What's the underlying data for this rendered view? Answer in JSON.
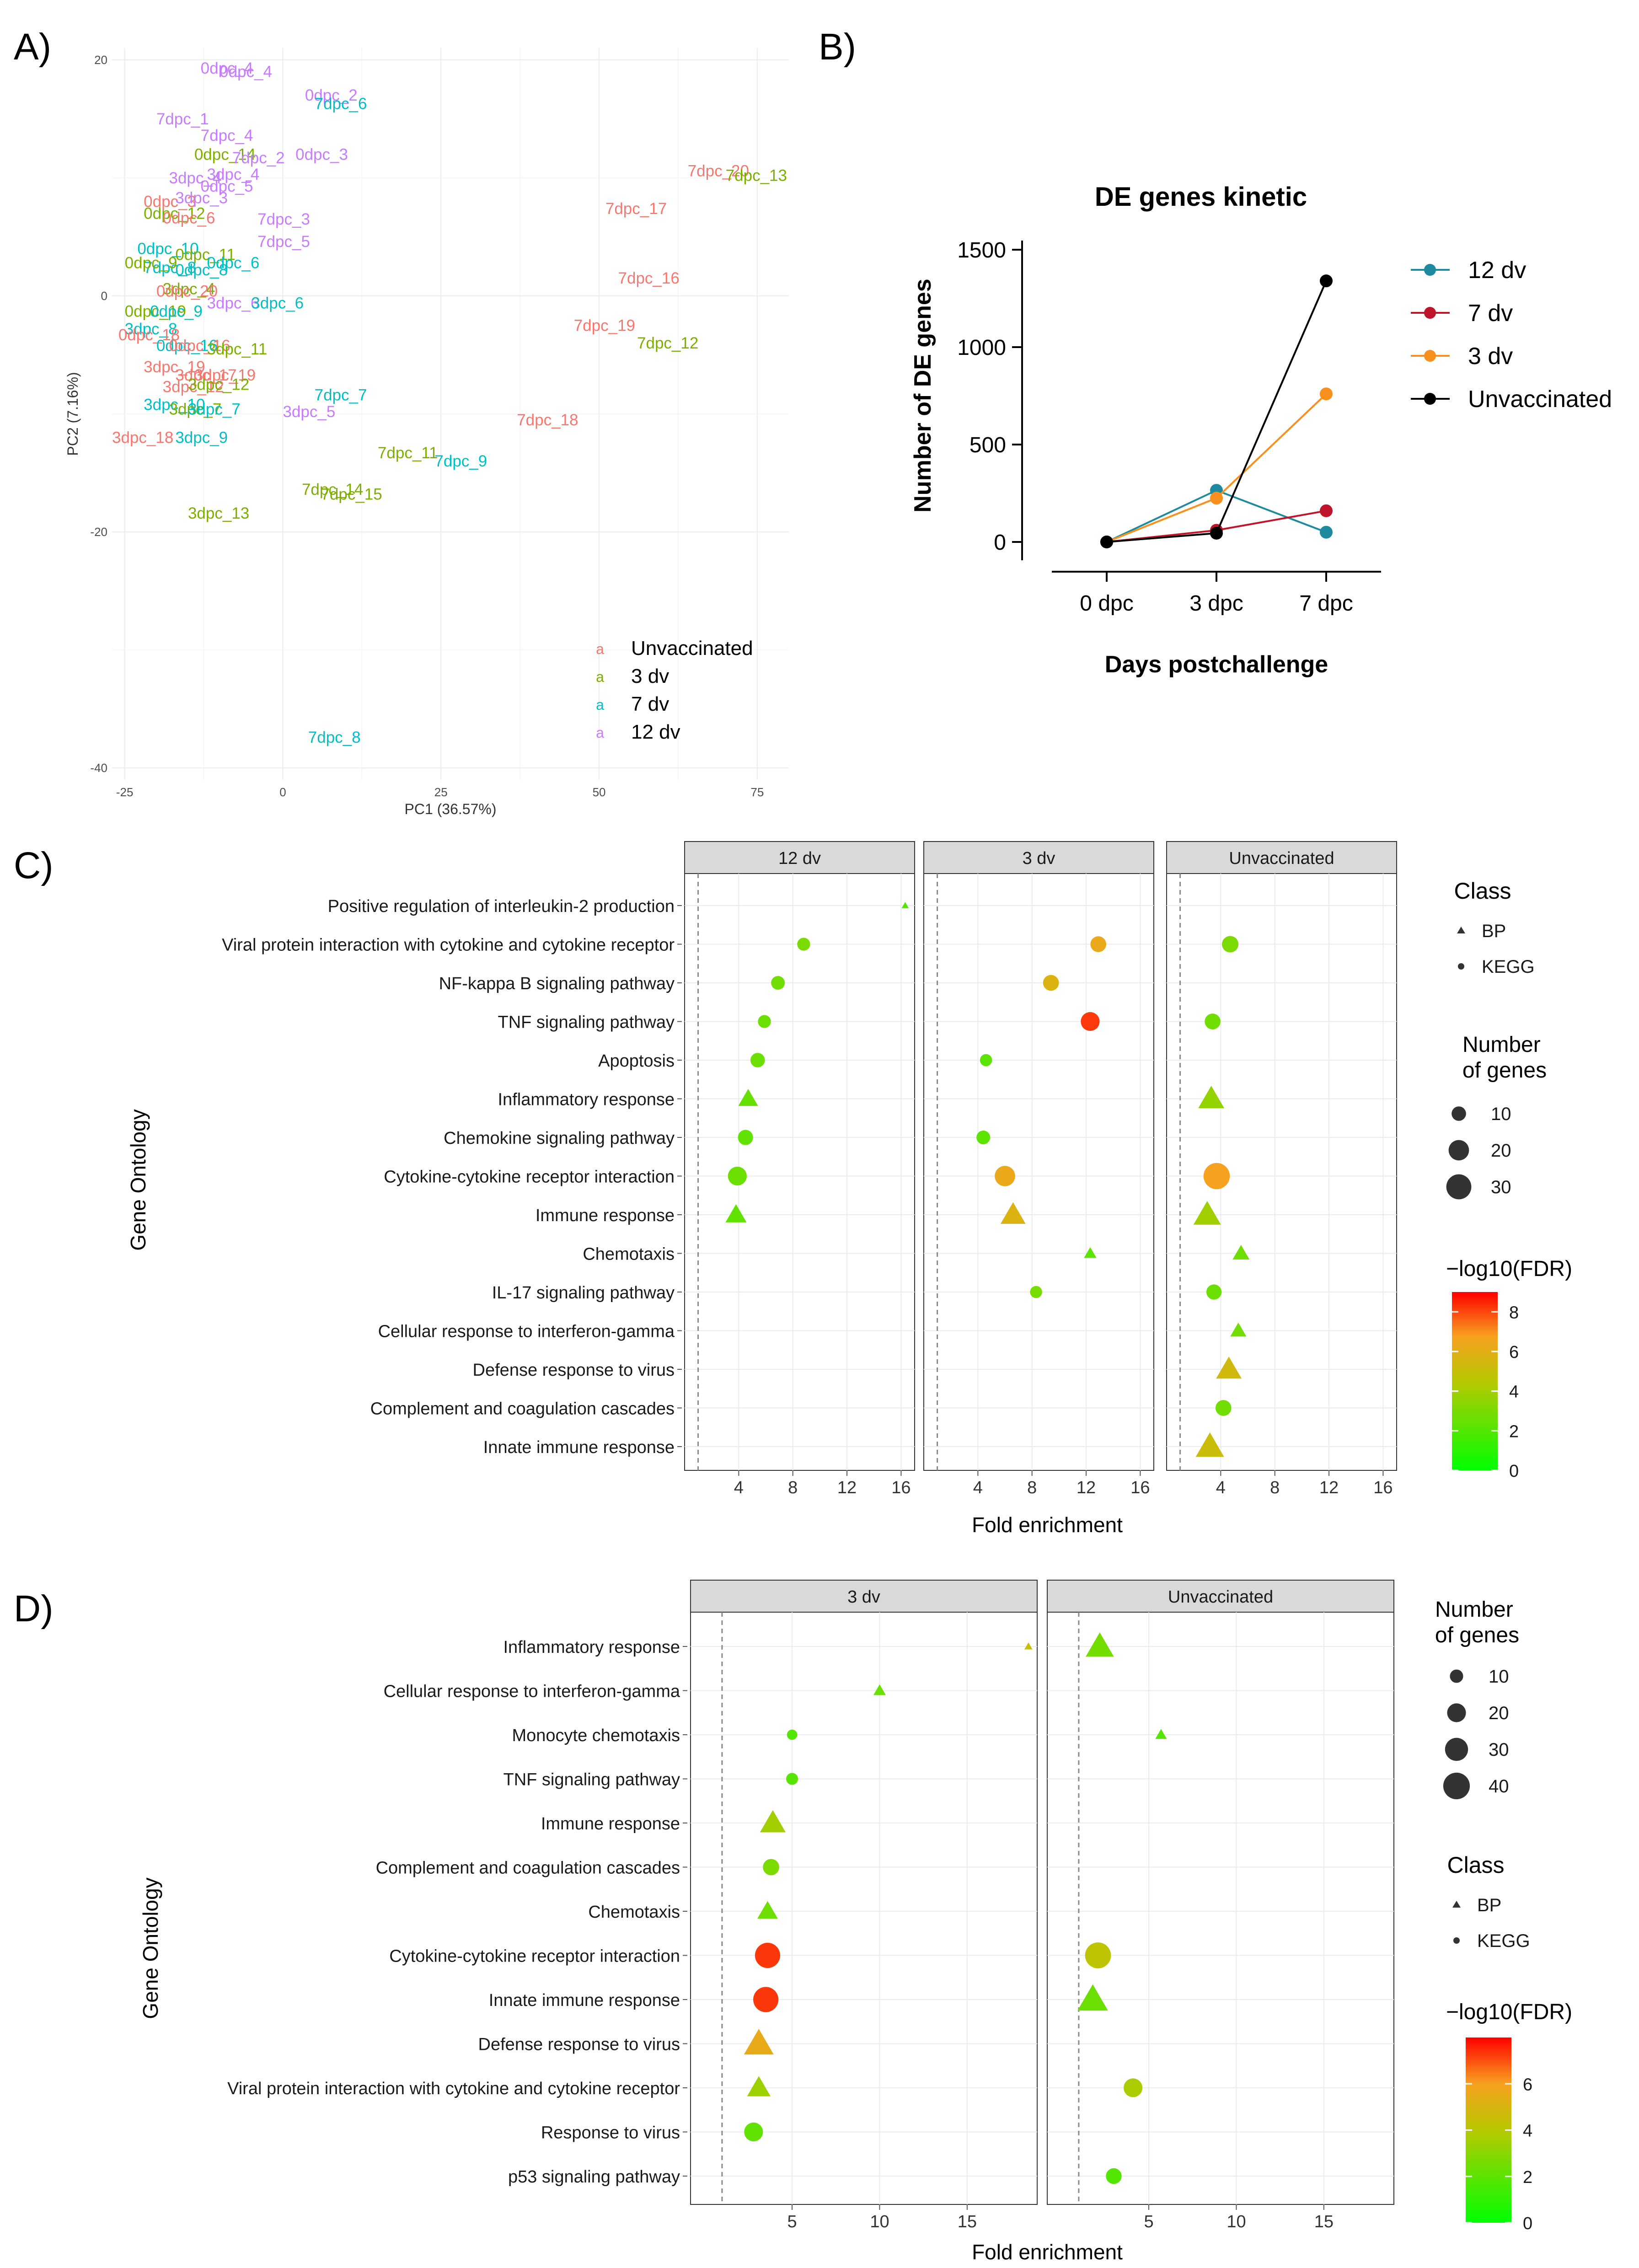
{
  "panel_labels": {
    "a": "A)",
    "b": "B)",
    "c": "C)",
    "d": "D)"
  },
  "colors": {
    "unvaccinated": "#F8766D",
    "dv3": "#7CAE00",
    "dv7": "#00BFC4",
    "dv12": "#C77CFF",
    "line_12dv": "#1F8A9E",
    "line_7dv": "#C0142B",
    "line_3dv": "#F7901E",
    "line_unvacc": "#000000"
  },
  "chart_data": [
    {
      "id": "A",
      "type": "scatter",
      "title": "",
      "xlabel": "PC1 (36.57%)",
      "ylabel": "PC2 (7.16%)",
      "xlim": [
        -27,
        80
      ],
      "ylim": [
        -41,
        21
      ],
      "xticks": [
        -25,
        0,
        25,
        50,
        75
      ],
      "yticks": [
        20,
        0,
        -20,
        -40
      ],
      "legend": [
        {
          "key": "u",
          "glyph": "a",
          "label": "Unvaccinated"
        },
        {
          "key": "d3",
          "glyph": "a",
          "label": "3 dv"
        },
        {
          "key": "d7",
          "glyph": "a",
          "label": "7 dv"
        },
        {
          "key": "d12",
          "glyph": "a",
          "label": "12 dv"
        }
      ],
      "points": [
        {
          "label": "0dpc_4",
          "x": -13,
          "y": 19.3,
          "g": "d12"
        },
        {
          "label": "0dpc_4",
          "x": -10,
          "y": 19,
          "g": "d12"
        },
        {
          "label": "0dpc_2",
          "x": 3.5,
          "y": 17,
          "g": "d12"
        },
        {
          "label": "7dpc_6",
          "x": 5,
          "y": 16.3,
          "g": "d7"
        },
        {
          "label": "7dpc_1",
          "x": -20,
          "y": 15,
          "g": "d12"
        },
        {
          "label": "7dpc_4",
          "x": -13,
          "y": 13.6,
          "g": "d12"
        },
        {
          "label": "0dpc_14",
          "x": -14,
          "y": 12,
          "g": "d3"
        },
        {
          "label": "7dpc_2",
          "x": -8,
          "y": 11.7,
          "g": "d12"
        },
        {
          "label": "0dpc_3",
          "x": 2,
          "y": 12,
          "g": "d12"
        },
        {
          "label": "3dpc_4",
          "x": -18,
          "y": 10,
          "g": "d12"
        },
        {
          "label": "3dpc_4",
          "x": -12,
          "y": 10.3,
          "g": "d12"
        },
        {
          "label": "0dpc_5",
          "x": -13,
          "y": 9.3,
          "g": "d12"
        },
        {
          "label": "0dpc_3",
          "x": -22,
          "y": 8,
          "g": "u"
        },
        {
          "label": "3dpc_3",
          "x": -17,
          "y": 8.3,
          "g": "d12"
        },
        {
          "label": "0dpc_12",
          "x": -22,
          "y": 7,
          "g": "d3"
        },
        {
          "label": "0dpc_6",
          "x": -19,
          "y": 6.6,
          "g": "u"
        },
        {
          "label": "7dpc_3",
          "x": -4,
          "y": 6.5,
          "g": "d12"
        },
        {
          "label": "7dpc_5",
          "x": -4,
          "y": 4.6,
          "g": "d12"
        },
        {
          "label": "0dpc_10",
          "x": -23,
          "y": 4,
          "g": "d7"
        },
        {
          "label": "0dpc_11",
          "x": -17,
          "y": 3.5,
          "g": "d3"
        },
        {
          "label": "0dpc_6",
          "x": -12,
          "y": 2.8,
          "g": "d7"
        },
        {
          "label": "7dpc_8",
          "x": -22,
          "y": 2.4,
          "g": "d7"
        },
        {
          "label": "0dpc_8",
          "x": -17,
          "y": 2.2,
          "g": "d7"
        },
        {
          "label": "0dpc_9",
          "x": -25,
          "y": 2.8,
          "g": "d3"
        },
        {
          "label": "3dpc_4",
          "x": -19,
          "y": 0.6,
          "g": "d3"
        },
        {
          "label": "0dpc_20",
          "x": -20,
          "y": 0.4,
          "g": "u"
        },
        {
          "label": "3dpc_6",
          "x": -12,
          "y": -0.6,
          "g": "d12"
        },
        {
          "label": "3dpc_6",
          "x": -5,
          "y": -0.6,
          "g": "d7"
        },
        {
          "label": "0dpc_19",
          "x": -25,
          "y": -1.3,
          "g": "d3"
        },
        {
          "label": "0dpc_9",
          "x": -21,
          "y": -1.3,
          "g": "d7"
        },
        {
          "label": "3dpc_8",
          "x": -25,
          "y": -2.8,
          "g": "d7"
        },
        {
          "label": "0dpc_18",
          "x": -26,
          "y": -3.3,
          "g": "u"
        },
        {
          "label": "0dpc_16",
          "x": -20,
          "y": -4.2,
          "g": "d7"
        },
        {
          "label": "0dpc_16",
          "x": -18,
          "y": -4.2,
          "g": "u"
        },
        {
          "label": "3dpc_11",
          "x": -12,
          "y": -4.5,
          "g": "d3"
        },
        {
          "label": "3dpc_19",
          "x": -22,
          "y": -6,
          "g": "u"
        },
        {
          "label": "3dpc_17",
          "x": -17,
          "y": -6.7,
          "g": "u"
        },
        {
          "label": "3dpc_19",
          "x": -14,
          "y": -6.7,
          "g": "u"
        },
        {
          "label": "3dpc_12",
          "x": -19,
          "y": -7.7,
          "g": "u"
        },
        {
          "label": "3dpc_12",
          "x": -15,
          "y": -7.5,
          "g": "d3"
        },
        {
          "label": "3dpc_10",
          "x": -22,
          "y": -9.2,
          "g": "d7"
        },
        {
          "label": "3dpc_7",
          "x": -18,
          "y": -9.6,
          "g": "d3"
        },
        {
          "label": "3dpc_7",
          "x": -15,
          "y": -9.6,
          "g": "d7"
        },
        {
          "label": "3dpc_18",
          "x": -27,
          "y": -12,
          "g": "u"
        },
        {
          "label": "3dpc_9",
          "x": -17,
          "y": -12,
          "g": "d7"
        },
        {
          "label": "3dpc_13",
          "x": -15,
          "y": -18.4,
          "g": "d3"
        },
        {
          "label": "7dpc_7",
          "x": 5,
          "y": -8.4,
          "g": "d7"
        },
        {
          "label": "3dpc_5",
          "x": 0,
          "y": -9.8,
          "g": "d12"
        },
        {
          "label": "7dpc_11",
          "x": 15,
          "y": -13.3,
          "g": "d3"
        },
        {
          "label": "7dpc_9",
          "x": 24,
          "y": -14,
          "g": "d7"
        },
        {
          "label": "7dpc_14",
          "x": 3,
          "y": -16.4,
          "g": "d3"
        },
        {
          "label": "7dpc_15",
          "x": 6,
          "y": -16.8,
          "g": "d3"
        },
        {
          "label": "7dpc_8",
          "x": 4,
          "y": -37.4,
          "g": "d7"
        },
        {
          "label": "7dpc_17",
          "x": 51,
          "y": 7.4,
          "g": "u"
        },
        {
          "label": "7dpc_16",
          "x": 53,
          "y": 1.5,
          "g": "u"
        },
        {
          "label": "7dpc_19",
          "x": 46,
          "y": -2.5,
          "g": "u"
        },
        {
          "label": "7dpc_12",
          "x": 56,
          "y": -4,
          "g": "d3"
        },
        {
          "label": "7dpc_18",
          "x": 37,
          "y": -10.5,
          "g": "u"
        },
        {
          "label": "7dpc_20",
          "x": 64,
          "y": 10.6,
          "g": "u"
        },
        {
          "label": "7dpc_13",
          "x": 70,
          "y": 10.2,
          "g": "d3"
        }
      ]
    },
    {
      "id": "B",
      "type": "line",
      "title": "DE genes kinetic",
      "xlabel": "Days postchallenge",
      "ylabel": "Number of DE genes",
      "categories": [
        "0 dpc",
        "3 dpc",
        "7 dpc"
      ],
      "ylim": [
        -80,
        1500
      ],
      "yticks": [
        0,
        500,
        1000,
        1500
      ],
      "series": [
        {
          "name": "12 dv",
          "color": "#1F8A9E",
          "values": [
            0,
            265,
            50
          ]
        },
        {
          "name": "7 dv",
          "color": "#C0142B",
          "values": [
            0,
            60,
            160
          ]
        },
        {
          "name": "3 dv",
          "color": "#F7901E",
          "values": [
            0,
            225,
            760
          ]
        },
        {
          "name": "Unvaccinated",
          "color": "#000000",
          "values": [
            0,
            45,
            1340
          ]
        }
      ]
    },
    {
      "id": "C",
      "type": "scatter",
      "title": "",
      "xlabel": "Fold enrichment",
      "ylabel": "Gene Ontology",
      "xlim": [
        0,
        17
      ],
      "xticks": [
        4,
        8,
        12,
        16
      ],
      "refline": 1,
      "facets": [
        "12 dv",
        "3 dv",
        "Unvaccinated"
      ],
      "terms": [
        "Positive regulation of interleukin-2 production",
        "Viral protein interaction with cytokine and cytokine receptor",
        "NF-kappa B signaling pathway",
        "TNF signaling pathway",
        "Apoptosis",
        "Inflammatory response",
        "Chemokine signaling pathway",
        "Cytokine-cytokine receptor interaction",
        "Immune response",
        "Chemotaxis",
        "IL-17 signaling pathway",
        "Cellular response to interferon-gamma",
        "Defense response to virus",
        "Complement and coagulation cascades",
        "Innate immune response"
      ],
      "legend_class": {
        "title": "Class",
        "items": [
          "BP",
          "KEGG"
        ]
      },
      "legend_size": {
        "title": "Number of genes",
        "values": [
          10,
          20,
          30
        ]
      },
      "legend_color": {
        "title": "−log10(FDR)",
        "max": 9,
        "ticks": [
          8,
          6,
          4,
          2,
          0
        ]
      },
      "points": [
        {
          "f": 0,
          "t": 0,
          "x": 16.3,
          "n": 2,
          "cls": "BP",
          "fdr": 2
        },
        {
          "f": 0,
          "t": 1,
          "x": 8.8,
          "n": 8,
          "cls": "KEGG",
          "fdr": 3
        },
        {
          "f": 0,
          "t": 2,
          "x": 6.9,
          "n": 9,
          "cls": "KEGG",
          "fdr": 2.8
        },
        {
          "f": 0,
          "t": 3,
          "x": 5.9,
          "n": 8,
          "cls": "KEGG",
          "fdr": 2.6
        },
        {
          "f": 0,
          "t": 4,
          "x": 5.4,
          "n": 10,
          "cls": "KEGG",
          "fdr": 2.6
        },
        {
          "f": 0,
          "t": 5,
          "x": 4.7,
          "n": 15,
          "cls": "BP",
          "fdr": 2.5
        },
        {
          "f": 0,
          "t": 6,
          "x": 4.5,
          "n": 11,
          "cls": "KEGG",
          "fdr": 2.4
        },
        {
          "f": 0,
          "t": 7,
          "x": 3.9,
          "n": 17,
          "cls": "KEGG",
          "fdr": 2.6
        },
        {
          "f": 0,
          "t": 8,
          "x": 3.8,
          "n": 17,
          "cls": "BP",
          "fdr": 2.4
        },
        {
          "f": 1,
          "t": 1,
          "x": 12.9,
          "n": 12,
          "cls": "KEGG",
          "fdr": 6.3
        },
        {
          "f": 1,
          "t": 2,
          "x": 9.4,
          "n": 12,
          "cls": "KEGG",
          "fdr": 5.7
        },
        {
          "f": 1,
          "t": 3,
          "x": 12.3,
          "n": 17,
          "cls": "KEGG",
          "fdr": 8.2
        },
        {
          "f": 1,
          "t": 4,
          "x": 4.6,
          "n": 7,
          "cls": "KEGG",
          "fdr": 2.2
        },
        {
          "f": 1,
          "t": 6,
          "x": 4.4,
          "n": 9,
          "cls": "KEGG",
          "fdr": 2.3
        },
        {
          "f": 1,
          "t": 7,
          "x": 6,
          "n": 20,
          "cls": "KEGG",
          "fdr": 6.3
        },
        {
          "f": 1,
          "t": 8,
          "x": 6.6,
          "n": 24,
          "cls": "BP",
          "fdr": 5.7
        },
        {
          "f": 1,
          "t": 9,
          "x": 12.3,
          "n": 6,
          "cls": "BP",
          "fdr": 2.2
        },
        {
          "f": 1,
          "t": 10,
          "x": 8.3,
          "n": 7,
          "cls": "KEGG",
          "fdr": 2.9
        },
        {
          "f": 2,
          "t": 1,
          "x": 4.7,
          "n": 13,
          "cls": "KEGG",
          "fdr": 3
        },
        {
          "f": 2,
          "t": 3,
          "x": 3.4,
          "n": 12,
          "cls": "KEGG",
          "fdr": 2.8
        },
        {
          "f": 2,
          "t": 5,
          "x": 3.3,
          "n": 26,
          "cls": "BP",
          "fdr": 3.6
        },
        {
          "f": 2,
          "t": 7,
          "x": 3.7,
          "n": 33,
          "cls": "KEGG",
          "fdr": 6.7
        },
        {
          "f": 2,
          "t": 8,
          "x": 3,
          "n": 29,
          "cls": "BP",
          "fdr": 3.9
        },
        {
          "f": 2,
          "t": 9,
          "x": 5.5,
          "n": 11,
          "cls": "BP",
          "fdr": 2.7
        },
        {
          "f": 2,
          "t": 10,
          "x": 3.5,
          "n": 11,
          "cls": "KEGG",
          "fdr": 2.6
        },
        {
          "f": 2,
          "t": 11,
          "x": 5.3,
          "n": 10,
          "cls": "BP",
          "fdr": 2.8
        },
        {
          "f": 2,
          "t": 12,
          "x": 4.6,
          "n": 25,
          "cls": "BP",
          "fdr": 5.4
        },
        {
          "f": 2,
          "t": 13,
          "x": 4.2,
          "n": 12,
          "cls": "KEGG",
          "fdr": 2.8
        },
        {
          "f": 2,
          "t": 14,
          "x": 3.2,
          "n": 31,
          "cls": "BP",
          "fdr": 5.1
        }
      ]
    },
    {
      "id": "D",
      "type": "scatter",
      "title": "",
      "xlabel": "Fold enrichment",
      "ylabel": "Gene Ontology",
      "xlim": [
        -0.8,
        19
      ],
      "xticks": [
        5,
        10,
        15
      ],
      "refline": 1,
      "facets": [
        "3 dv",
        "Unvaccinated"
      ],
      "terms": [
        "Inflammatory response",
        "Cellular response to interferon-gamma",
        "Monocyte chemotaxis",
        "TNF signaling pathway",
        "Immune response",
        "Complement and coagulation cascades",
        "Chemotaxis",
        "Cytokine-cytokine receptor interaction",
        "Innate immune response",
        "Defense response to virus",
        "Viral protein interaction with cytokine and cytokine receptor",
        "Response to virus",
        "p53 signaling pathway"
      ],
      "legend_class": {
        "title": "Class",
        "items": [
          "BP",
          "KEGG"
        ]
      },
      "legend_size": {
        "title": "Number of genes",
        "values": [
          10,
          20,
          30,
          40
        ]
      },
      "legend_color": {
        "title": "−log10(FDR)",
        "max": 8,
        "ticks": [
          6,
          4,
          2,
          0
        ]
      },
      "points": [
        {
          "f": 0,
          "t": 0,
          "x": 18.5,
          "n": 3,
          "cls": "BP",
          "fdr": 4.5
        },
        {
          "f": 0,
          "t": 1,
          "x": 10,
          "n": 7,
          "cls": "BP",
          "fdr": 2.3
        },
        {
          "f": 0,
          "t": 2,
          "x": 5,
          "n": 6,
          "cls": "KEGG",
          "fdr": 1.8
        },
        {
          "f": 0,
          "t": 3,
          "x": 5,
          "n": 8,
          "cls": "KEGG",
          "fdr": 1.9
        },
        {
          "f": 0,
          "t": 4,
          "x": 3.9,
          "n": 30,
          "cls": "BP",
          "fdr": 3.5
        },
        {
          "f": 0,
          "t": 5,
          "x": 3.8,
          "n": 15,
          "cls": "KEGG",
          "fdr": 2.7
        },
        {
          "f": 0,
          "t": 6,
          "x": 3.6,
          "n": 19,
          "cls": "BP",
          "fdr": 2.4
        },
        {
          "f": 0,
          "t": 7,
          "x": 3.6,
          "n": 36,
          "cls": "KEGG",
          "fdr": 7.3
        },
        {
          "f": 0,
          "t": 8,
          "x": 3.5,
          "n": 36,
          "cls": "KEGG",
          "fdr": 7.3
        },
        {
          "f": 0,
          "t": 9,
          "x": 3.1,
          "n": 40,
          "cls": "BP",
          "fdr": 5.5
        },
        {
          "f": 0,
          "t": 10,
          "x": 3.1,
          "n": 25,
          "cls": "BP",
          "fdr": 3.4
        },
        {
          "f": 0,
          "t": 11,
          "x": 2.8,
          "n": 20,
          "cls": "KEGG",
          "fdr": 2.1
        },
        {
          "f": 1,
          "t": 0,
          "x": 2.2,
          "n": 36,
          "cls": "BP",
          "fdr": 2.5
        },
        {
          "f": 1,
          "t": 2,
          "x": 5.7,
          "n": 6,
          "cls": "BP",
          "fdr": 1.9
        },
        {
          "f": 1,
          "t": 7,
          "x": 2.1,
          "n": 38,
          "cls": "KEGG",
          "fdr": 4.2
        },
        {
          "f": 1,
          "t": 8,
          "x": 1.8,
          "n": 42,
          "cls": "BP",
          "fdr": 2.3
        },
        {
          "f": 1,
          "t": 10,
          "x": 4.1,
          "n": 20,
          "cls": "KEGG",
          "fdr": 3.7
        },
        {
          "f": 1,
          "t": 12,
          "x": 3,
          "n": 14,
          "cls": "KEGG",
          "fdr": 1.8
        }
      ]
    }
  ]
}
